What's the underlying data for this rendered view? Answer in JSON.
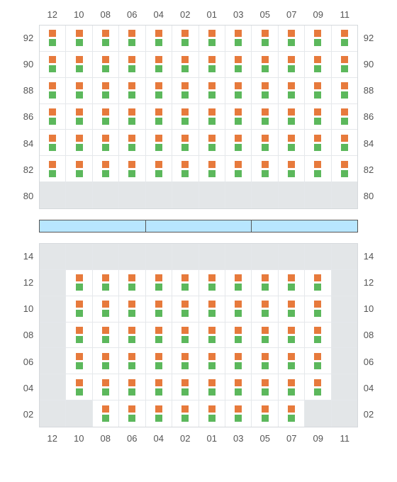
{
  "colors": {
    "indicator_a": "#e77a3c",
    "indicator_b": "#5cb85c",
    "empty_cell": "#e3e6e8",
    "grid_border": "#d5d9dc",
    "cell_border": "#e5e8eb",
    "separator_fill": "#b8e6ff",
    "separator_border": "#555555",
    "label_text": "#555555",
    "background": "#ffffff"
  },
  "column_labels": [
    "12",
    "10",
    "08",
    "06",
    "04",
    "02",
    "01",
    "03",
    "05",
    "07",
    "09",
    "11"
  ],
  "top_panel": {
    "row_labels": [
      "92",
      "90",
      "88",
      "86",
      "84",
      "82",
      "80"
    ],
    "rows": [
      [
        1,
        1,
        1,
        1,
        1,
        1,
        1,
        1,
        1,
        1,
        1,
        1
      ],
      [
        1,
        1,
        1,
        1,
        1,
        1,
        1,
        1,
        1,
        1,
        1,
        1
      ],
      [
        1,
        1,
        1,
        1,
        1,
        1,
        1,
        1,
        1,
        1,
        1,
        1
      ],
      [
        1,
        1,
        1,
        1,
        1,
        1,
        1,
        1,
        1,
        1,
        1,
        1
      ],
      [
        1,
        1,
        1,
        1,
        1,
        1,
        1,
        1,
        1,
        1,
        1,
        1
      ],
      [
        1,
        1,
        1,
        1,
        1,
        1,
        1,
        1,
        1,
        1,
        1,
        1
      ],
      [
        0,
        0,
        0,
        0,
        0,
        0,
        0,
        0,
        0,
        0,
        0,
        0
      ]
    ]
  },
  "separator_segments": 3,
  "bottom_panel": {
    "row_labels": [
      "14",
      "12",
      "10",
      "08",
      "06",
      "04",
      "02"
    ],
    "rows": [
      [
        0,
        0,
        0,
        0,
        0,
        0,
        0,
        0,
        0,
        0,
        0,
        0
      ],
      [
        0,
        1,
        1,
        1,
        1,
        1,
        1,
        1,
        1,
        1,
        1,
        0
      ],
      [
        0,
        1,
        1,
        1,
        1,
        1,
        1,
        1,
        1,
        1,
        1,
        0
      ],
      [
        0,
        1,
        1,
        1,
        1,
        1,
        1,
        1,
        1,
        1,
        1,
        0
      ],
      [
        0,
        1,
        1,
        1,
        1,
        1,
        1,
        1,
        1,
        1,
        1,
        0
      ],
      [
        0,
        1,
        1,
        1,
        1,
        1,
        1,
        1,
        1,
        1,
        1,
        0
      ],
      [
        0,
        0,
        1,
        1,
        1,
        1,
        1,
        1,
        1,
        1,
        0,
        0
      ]
    ]
  }
}
